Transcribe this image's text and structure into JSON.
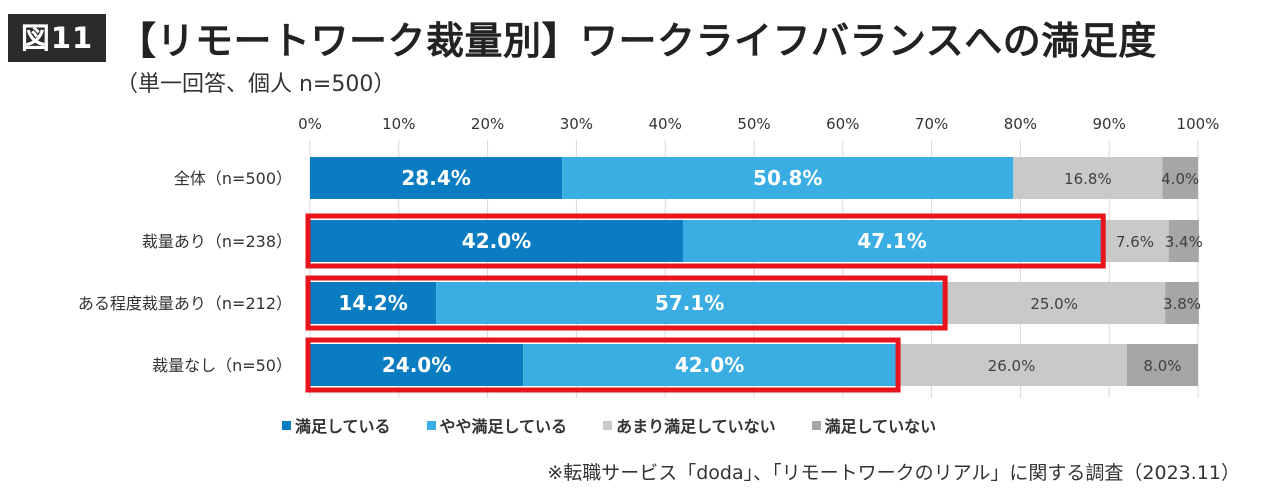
{
  "figure_label": "図11",
  "title": "【リモートワーク裁量別】ワークライフバランスへの満足度",
  "subtitle": "（単一回答、個人 n=500）",
  "source": "※転職サービス「doda」、「リモートワークのリアル」に関する調査（2023.11）",
  "chart_data": {
    "type": "bar",
    "orientation": "horizontal",
    "stacked": true,
    "title": "【リモートワーク裁量別】ワークライフバランスへの満足度",
    "subtitle": "（単一回答、個人 n=500）",
    "xlim": [
      0,
      100
    ],
    "xticks": [
      "0%",
      "10%",
      "20%",
      "30%",
      "40%",
      "50%",
      "60%",
      "70%",
      "80%",
      "90%",
      "100%"
    ],
    "categories": [
      "全体（n=500）",
      "裁量あり（n=238）",
      "ある程度裁量あり（n=212）",
      "裁量なし（n=50）"
    ],
    "series": [
      {
        "name": "満足している",
        "color": "#0A7DC2",
        "values": [
          28.4,
          42.0,
          14.2,
          24.0
        ],
        "labels": [
          "28.4%",
          "42.0%",
          "14.2%",
          "24.0%"
        ]
      },
      {
        "name": "やや満足している",
        "color": "#3AAEE3",
        "values": [
          50.8,
          47.1,
          57.1,
          42.0
        ],
        "labels": [
          "50.8%",
          "47.1%",
          "57.1%",
          "42.0%"
        ]
      },
      {
        "name": "あまり満足していない",
        "color": "#C9C9C9",
        "values": [
          16.8,
          7.6,
          25.0,
          26.0
        ],
        "labels": [
          "16.8%",
          "7.6%",
          "25.0%",
          "26.0%"
        ]
      },
      {
        "name": "満足していない",
        "color": "#A6A6A6",
        "values": [
          4.0,
          3.4,
          3.8,
          8.0
        ],
        "labels": [
          "4.0%",
          "3.4%",
          "3.8%",
          "8.0%"
        ]
      }
    ],
    "highlight_color": "#E8141B",
    "highlighted_categories": [
      1,
      2,
      3
    ],
    "legend_position": "bottom",
    "grid": true
  }
}
